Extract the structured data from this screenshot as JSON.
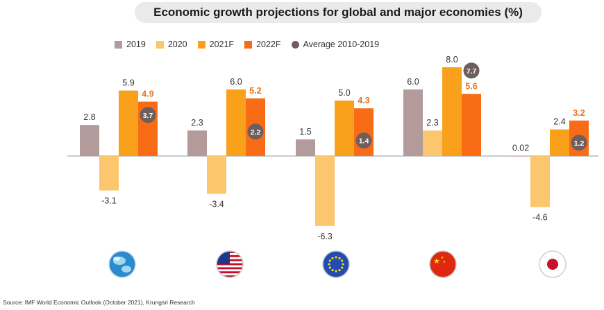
{
  "title": "Economic growth projections for global and major economies (%)",
  "source": "Source: IMF World Economic Outlook (October 2021), Krungsri Research",
  "legend": [
    {
      "label": "2019",
      "color": "#b39a9b",
      "shape": "square"
    },
    {
      "label": "2020",
      "color": "#fbc66e",
      "shape": "square"
    },
    {
      "label": "2021F",
      "color": "#f9a11b",
      "shape": "square"
    },
    {
      "label": "2022F",
      "color": "#f86c15",
      "shape": "square"
    },
    {
      "label": "Average 2010-2019",
      "color": "#6e5f5e",
      "shape": "circle"
    }
  ],
  "chart_data": {
    "type": "bar",
    "categories": [
      "Global",
      "United States",
      "Euro Area",
      "China",
      "Japan"
    ],
    "category_icons": [
      "globe-icon",
      "us-flag-icon",
      "eu-flag-icon",
      "china-flag-icon",
      "japan-flag-icon"
    ],
    "series": [
      {
        "name": "2019",
        "color": "#b39a9b",
        "values": [
          2.8,
          2.3,
          1.5,
          6.0,
          0.02
        ],
        "labels": [
          "2.8",
          "2.3",
          "1.5",
          "6.0",
          "0.02"
        ]
      },
      {
        "name": "2020",
        "color": "#fbc66e",
        "values": [
          -3.1,
          -3.4,
          -6.3,
          2.3,
          -4.6
        ],
        "labels": [
          "-3.1",
          "-3.4",
          "-6.3",
          "2.3",
          "-4.6"
        ]
      },
      {
        "name": "2021F",
        "color": "#f9a11b",
        "values": [
          5.9,
          6.0,
          5.0,
          8.0,
          2.4
        ],
        "labels": [
          "5.9",
          "6.0",
          "5.0",
          "8.0",
          "2.4"
        ]
      },
      {
        "name": "2022F",
        "color": "#f86c15",
        "label_color": "#e8731a",
        "values": [
          4.9,
          5.2,
          4.3,
          5.6,
          3.2
        ],
        "labels": [
          "4.9",
          "5.2",
          "4.3",
          "5.6",
          "3.2"
        ]
      }
    ],
    "average_2010_2019": {
      "name": "Average 2010-2019",
      "color": "#6e5f5e",
      "values": [
        3.7,
        2.2,
        1.4,
        7.7,
        1.2
      ],
      "labels": [
        "3.7",
        "2.2",
        "1.4",
        "7.7",
        "1.2"
      ]
    },
    "ylim": [
      -6.5,
      8.5
    ],
    "grid": false,
    "legend_position": "top"
  }
}
